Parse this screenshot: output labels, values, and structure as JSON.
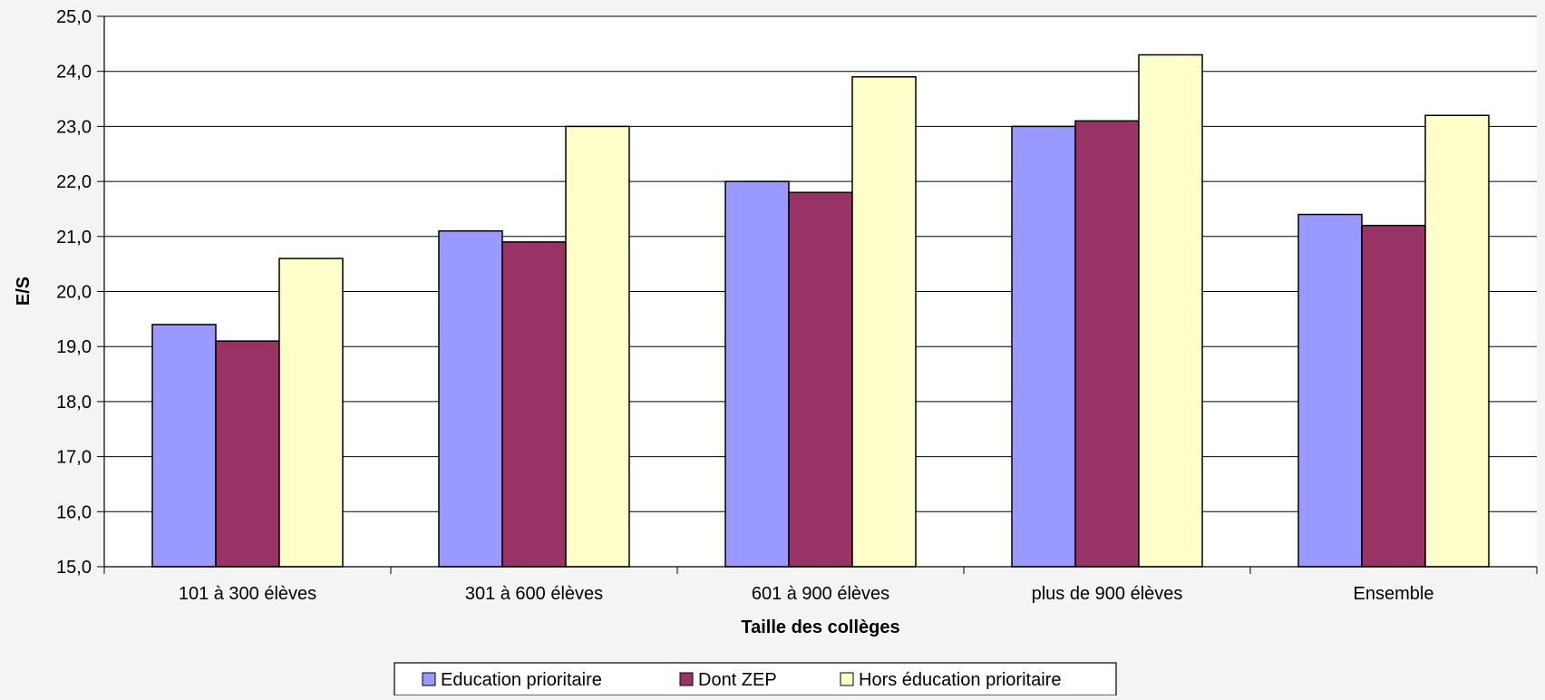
{
  "chart_data": {
    "type": "bar",
    "title": "",
    "xlabel": "Taille des collèges",
    "ylabel": "E/S",
    "ylim": [
      15,
      25
    ],
    "y_ticks": [
      "15,0",
      "16,0",
      "17,0",
      "18,0",
      "19,0",
      "20,0",
      "21,0",
      "22,0",
      "23,0",
      "24,0",
      "25,0"
    ],
    "y_tick_values": [
      15,
      16,
      17,
      18,
      19,
      20,
      21,
      22,
      23,
      24,
      25
    ],
    "grid": true,
    "legend_position": "bottom-center",
    "categories": [
      "101 à 300 élèves",
      "301 à 600 élèves",
      "601 à 900 élèves",
      "plus de 900 élèves",
      "Ensemble"
    ],
    "series": [
      {
        "name": "Education prioritaire",
        "color": "#9999ff",
        "values": [
          19.4,
          21.1,
          22.0,
          23.0,
          21.4
        ]
      },
      {
        "name": "Dont ZEP",
        "color": "#993366",
        "values": [
          19.1,
          20.9,
          21.8,
          23.1,
          21.2
        ]
      },
      {
        "name": "Hors éducation prioritaire",
        "color": "#ffffcc",
        "values": [
          20.6,
          23.0,
          23.9,
          24.3,
          23.2
        ]
      }
    ]
  }
}
